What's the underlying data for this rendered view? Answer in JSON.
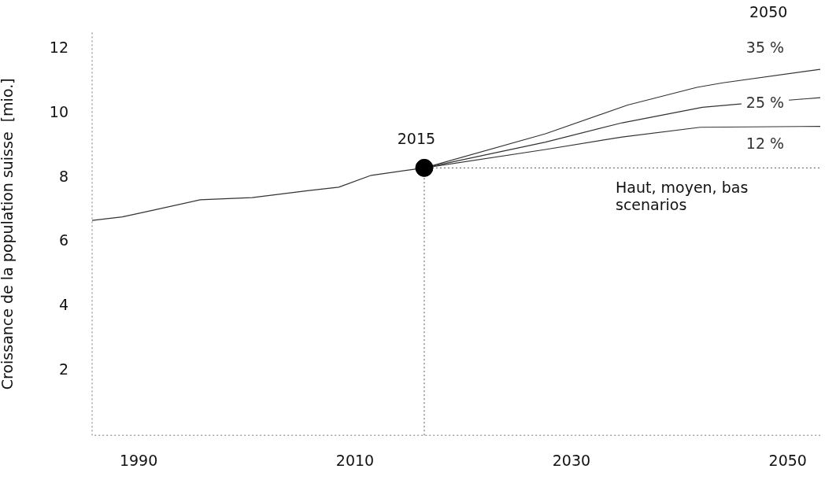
{
  "chart_data": {
    "type": "line",
    "ylabel": "Croissance de la population suisse  [mio.]",
    "xlim": [
      1985.7,
      2053
    ],
    "xticks": [
      1990,
      2010,
      2030,
      2050
    ],
    "ylim": [
      0,
      12.5
    ],
    "yticks": [
      2,
      4,
      6,
      8,
      10,
      12
    ],
    "grid": false,
    "legend": false,
    "marker": "none",
    "line_style": "solid",
    "series": [
      {
        "color": "#333333",
        "x": [
          1985.7,
          1988.5,
          1991.1,
          1995.7,
          2000.5,
          2005.6,
          2008.5,
          2011.5,
          2016.4
        ],
        "values": [
          6.67,
          6.78,
          6.97,
          7.31,
          7.38,
          7.59,
          7.7,
          8.07,
          8.3
        ]
      },
      {
        "name": "35 %",
        "color": "#333333",
        "x": [
          2016.4,
          2027.6,
          2035.2,
          2041.6,
          2044,
          2053
        ],
        "values": [
          8.3,
          9.36,
          10.25,
          10.8,
          10.94,
          11.36
        ]
      },
      {
        "name": "25 %",
        "color": "#333333",
        "x": [
          2016.4,
          2027.6,
          2034.7,
          2042.1,
          2045.4,
          2051.5,
          2053
        ],
        "values": [
          8.3,
          9.1,
          9.7,
          10.18,
          10.28,
          10.44,
          10.48
        ]
      },
      {
        "name": "12 %",
        "color": "#333333",
        "x": [
          2016.4,
          2027.6,
          2034.7,
          2041.9,
          2053
        ],
        "values": [
          8.3,
          8.87,
          9.26,
          9.56,
          9.59
        ]
      },
      {
        "type": "scatter",
        "marker": "circle",
        "color": "#000000",
        "x": [
          2016.4
        ],
        "values": [
          8.3
        ]
      }
    ],
    "ref_lines": [
      {
        "axis": "y",
        "value": 8.3,
        "line_style": "dotted",
        "color": "#555555"
      },
      {
        "axis": "x",
        "value": 2016.4,
        "line_style": "dotted",
        "color": "#555555"
      }
    ],
    "annotations": [
      {
        "text": "2015",
        "x": 2016.4,
        "y": 8.3
      },
      "2050",
      "Haut, moyen, bas scenarios"
    ]
  }
}
